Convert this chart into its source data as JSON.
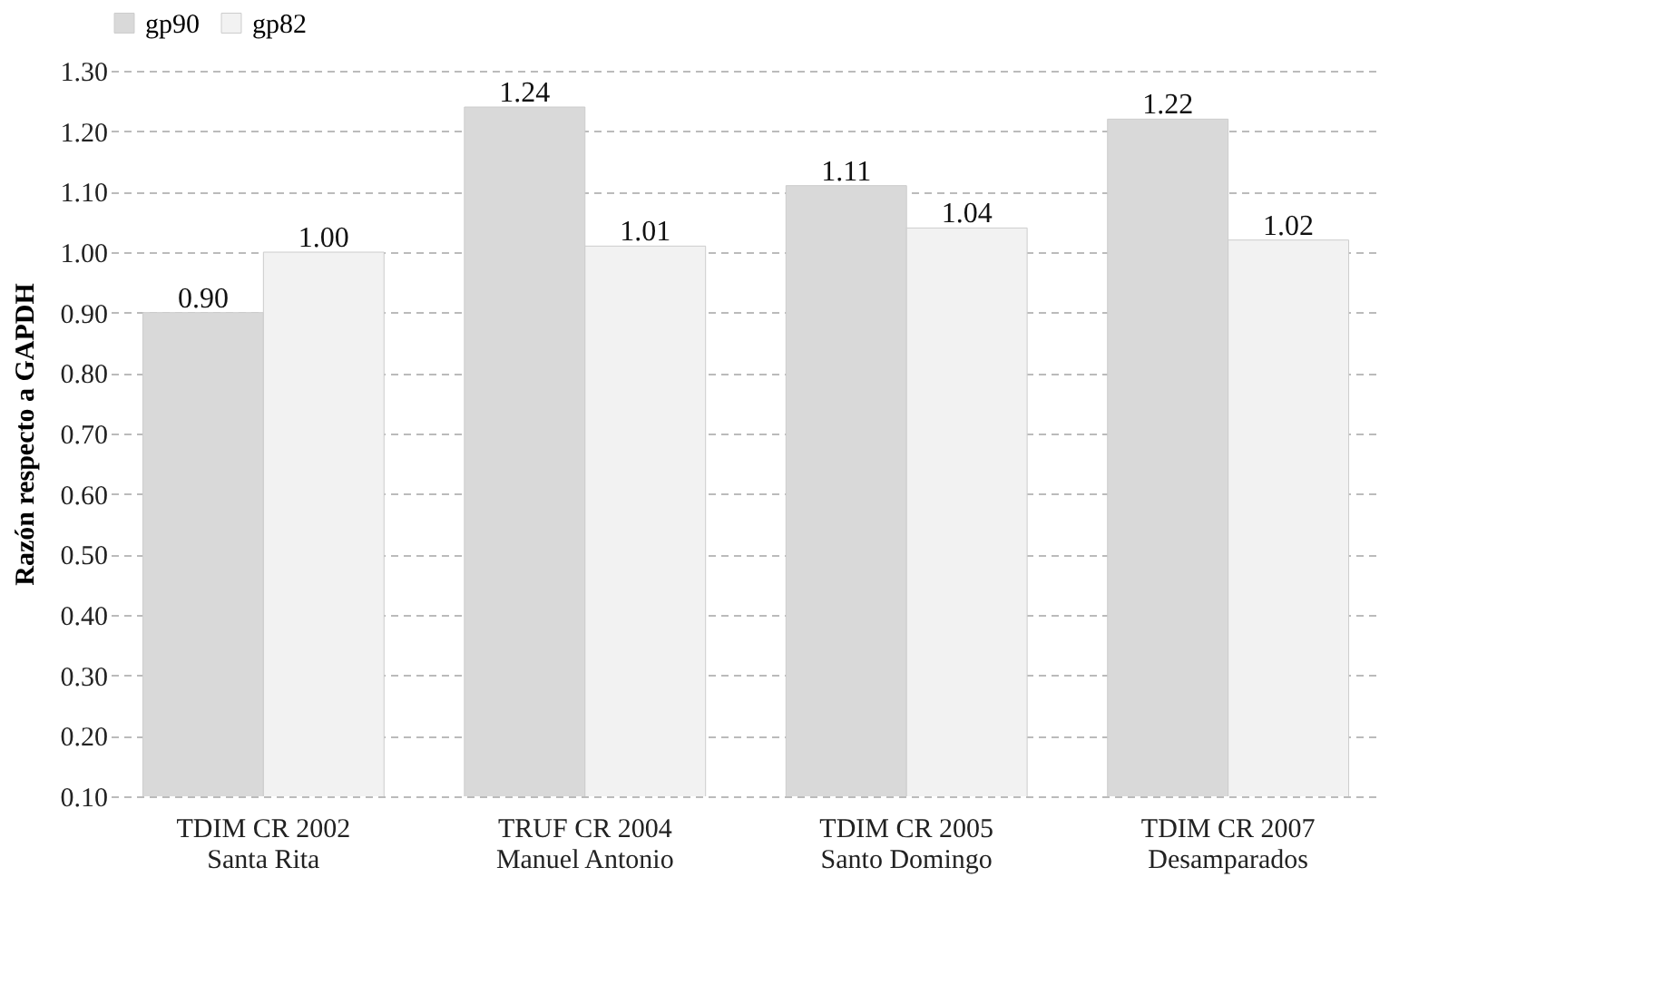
{
  "chart_data": {
    "type": "bar",
    "ylabel": "Razón respecto a GAPDH",
    "categories": [
      "TDIM CR 2002\nSanta Rita",
      "TRUF CR 2004\nManuel Antonio",
      "TDIM CR 2005\nSanto Domingo",
      "TDIM CR 2007\nDesamparados"
    ],
    "series": [
      {
        "name": "gp90",
        "color": "#d9d9d9",
        "values": [
          0.9,
          1.24,
          1.11,
          1.22
        ],
        "value_labels": [
          "0.90",
          "1.24",
          "1.11",
          "1.22"
        ]
      },
      {
        "name": "gp82",
        "color": "#f2f2f2",
        "values": [
          1.0,
          1.01,
          1.04,
          1.02
        ],
        "value_labels": [
          "1.00",
          "1.01",
          "1.04",
          "1.02"
        ]
      }
    ],
    "ylim": [
      0.1,
      1.3
    ],
    "yticks": [
      {
        "value": 0.1,
        "label": "0.10"
      },
      {
        "value": 0.2,
        "label": "0.20"
      },
      {
        "value": 0.3,
        "label": "0.30"
      },
      {
        "value": 0.4,
        "label": "0.40"
      },
      {
        "value": 0.5,
        "label": "0.50"
      },
      {
        "value": 0.6,
        "label": "0.60"
      },
      {
        "value": 0.7,
        "label": "0.70"
      },
      {
        "value": 0.8,
        "label": "0.80"
      },
      {
        "value": 0.9,
        "label": "0.90"
      },
      {
        "value": 1.0,
        "label": "1.00"
      },
      {
        "value": 1.1,
        "label": "1.10"
      },
      {
        "value": 1.2,
        "label": "1.20"
      },
      {
        "value": 1.3,
        "label": "1.30"
      }
    ],
    "grid": "y",
    "legend": "top"
  }
}
